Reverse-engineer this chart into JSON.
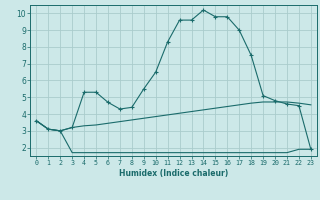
{
  "xlabel": "Humidex (Indice chaleur)",
  "bg_color": "#cce8e8",
  "grid_color": "#aacccc",
  "line_color": "#1a6b6b",
  "xlim": [
    -0.5,
    23.5
  ],
  "ylim": [
    1.5,
    10.5
  ],
  "xticks": [
    0,
    1,
    2,
    3,
    4,
    5,
    6,
    7,
    8,
    9,
    10,
    11,
    12,
    13,
    14,
    15,
    16,
    17,
    18,
    19,
    20,
    21,
    22,
    23
  ],
  "yticks": [
    2,
    3,
    4,
    5,
    6,
    7,
    8,
    9,
    10
  ],
  "curve1_x": [
    0,
    1,
    2,
    3,
    4,
    5,
    6,
    7,
    8,
    9,
    10,
    11,
    12,
    13,
    14,
    15,
    16,
    17,
    18,
    19,
    20,
    21,
    22,
    23
  ],
  "curve1_y": [
    3.6,
    3.1,
    3.0,
    3.2,
    3.3,
    3.35,
    3.45,
    3.55,
    3.65,
    3.75,
    3.85,
    3.95,
    4.05,
    4.15,
    4.25,
    4.35,
    4.45,
    4.55,
    4.65,
    4.72,
    4.72,
    4.72,
    4.65,
    4.55
  ],
  "curve2_x": [
    0,
    1,
    2,
    3,
    4,
    5,
    6,
    7,
    8,
    9,
    10,
    11,
    12,
    13,
    14,
    15,
    16,
    17,
    18,
    19,
    20,
    21,
    22,
    23
  ],
  "curve2_y": [
    3.6,
    3.1,
    3.0,
    1.7,
    1.7,
    1.7,
    1.7,
    1.7,
    1.7,
    1.7,
    1.7,
    1.7,
    1.7,
    1.7,
    1.7,
    1.7,
    1.7,
    1.7,
    1.7,
    1.7,
    1.7,
    1.7,
    1.9,
    1.9
  ],
  "curve3_x": [
    0,
    1,
    2,
    3,
    4,
    5,
    6,
    7,
    8,
    9,
    10,
    11,
    12,
    13,
    14,
    15,
    16,
    17,
    18,
    19,
    20,
    21,
    22,
    23
  ],
  "curve3_y": [
    3.6,
    3.1,
    3.0,
    3.2,
    5.3,
    5.3,
    4.7,
    4.3,
    4.4,
    5.5,
    6.5,
    8.3,
    9.6,
    9.6,
    10.2,
    9.8,
    9.8,
    9.0,
    7.5,
    5.1,
    4.8,
    4.6,
    4.5,
    1.9
  ]
}
